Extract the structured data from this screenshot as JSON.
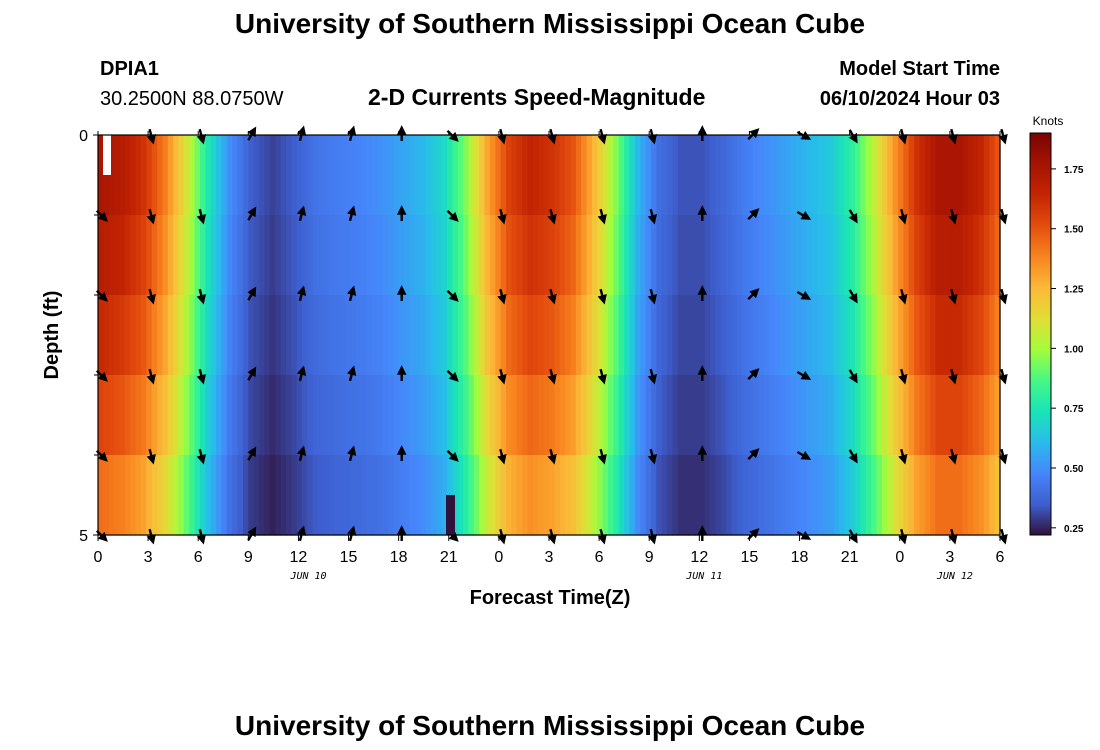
{
  "header": {
    "title": "University of Southern Mississippi Ocean Cube",
    "station": "DPIA1",
    "coords": "30.2500N  88.0750W",
    "plot_title": "2-D Currents Speed-Magnitude",
    "start_label": "Model Start Time",
    "start_value": "06/10/2024 Hour 03",
    "footer_title": "University of Southern Mississippi Ocean Cube"
  },
  "chart_data": {
    "type": "heatmap",
    "title": "2-D Currents Speed-Magnitude",
    "xlabel": "Forecast Time(Z)",
    "ylabel": "Depth (ft)",
    "x_ticks": [
      "0",
      "3",
      "6",
      "9",
      "12",
      "15",
      "18",
      "21",
      "0",
      "3",
      "6",
      "9",
      "12",
      "15",
      "18",
      "21",
      "0",
      "3",
      "6"
    ],
    "x_dates": [
      "JUN 10",
      "JUN 11",
      "JUN 12"
    ],
    "y_ticks": [
      "0",
      "5"
    ],
    "ylim": [
      0,
      5
    ],
    "colorbar": {
      "label": "Knots",
      "ticks": [
        "1.75",
        "1.50",
        "1.25",
        "1.00",
        "0.75",
        "0.50",
        "0.25"
      ],
      "range": [
        0.22,
        1.9
      ]
    },
    "speed_profile_knots": [
      1.75,
      1.7,
      1.6,
      1.4,
      1.1,
      0.75,
      0.5,
      0.35,
      0.3,
      0.35,
      0.42,
      0.45,
      0.47,
      0.5,
      0.55,
      0.6,
      0.7,
      0.95,
      1.3,
      1.55,
      1.65,
      1.6,
      1.5,
      1.25,
      0.95,
      0.6,
      0.4,
      0.33,
      0.33,
      0.38,
      0.45,
      0.5,
      0.55,
      0.6,
      0.65,
      0.8,
      1.05,
      1.35,
      1.6,
      1.75,
      1.75,
      1.65,
      1.45
    ],
    "depth_scale": [
      1.0,
      0.97,
      0.93,
      0.88,
      0.82
    ],
    "arrow_columns_deg": [
      135,
      165,
      165,
      30,
      15,
      15,
      0,
      135,
      165,
      165,
      165,
      165,
      0,
      45,
      120,
      150,
      165,
      165,
      165
    ],
    "arrow_rows_ft": [
      0,
      1,
      2,
      3,
      4,
      5
    ]
  },
  "colors": {
    "scale": [
      "#7a0403",
      "#a51303",
      "#c42503",
      "#e44d0e",
      "#f8841f",
      "#fbb938",
      "#e1dd37",
      "#a4fc3c",
      "#46f884",
      "#1ae4b6",
      "#28bceb",
      "#4686fb",
      "#3e5fcf",
      "#30123b"
    ]
  }
}
